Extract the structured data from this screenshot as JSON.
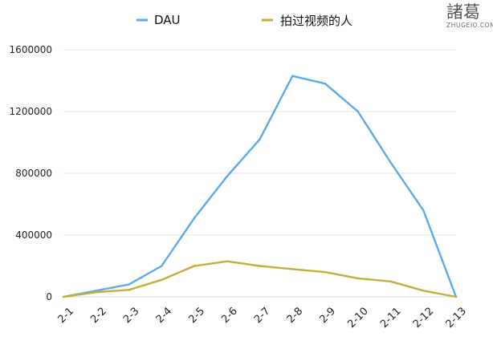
{
  "watermark": {
    "text_cn": "諸葛",
    "text_en": "ZHUGEIO.COM"
  },
  "chart_data": {
    "type": "line",
    "categories": [
      "2-1",
      "2-2",
      "2-3",
      "2-4",
      "2-5",
      "2-6",
      "2-7",
      "2-8",
      "2-9",
      "2-10",
      "2-11",
      "2-12",
      "2-13"
    ],
    "series": [
      {
        "name": "DAU",
        "color": "#5aaaf0",
        "values": [
          0,
          40000,
          80000,
          200000,
          510000,
          780000,
          1020000,
          1430000,
          1380000,
          1200000,
          870000,
          560000,
          0
        ]
      },
      {
        "name": "拍过视频的人",
        "color": "#c4ad3a",
        "values": [
          0,
          30000,
          45000,
          110000,
          200000,
          230000,
          200000,
          180000,
          160000,
          120000,
          100000,
          40000,
          0
        ]
      }
    ],
    "y_ticks": [
      0,
      400000,
      800000,
      1200000,
      1600000
    ],
    "ylim": [
      0,
      1600000
    ],
    "grid": true,
    "legend_position": "top-center",
    "title": "",
    "xlabel": "",
    "ylabel": ""
  }
}
